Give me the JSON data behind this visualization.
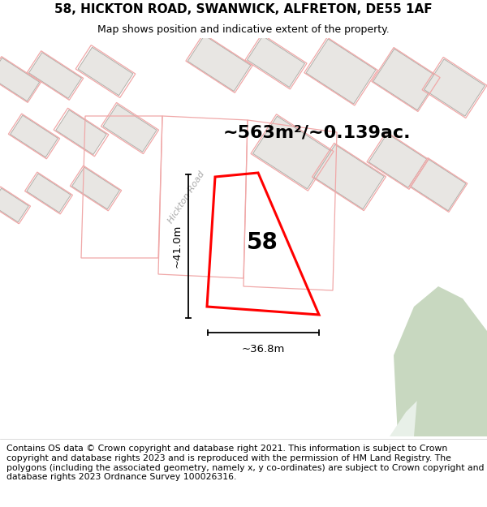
{
  "title_line1": "58, HICKTON ROAD, SWANWICK, ALFRETON, DE55 1AF",
  "title_line2": "Map shows position and indicative extent of the property.",
  "footer_text": "Contains OS data © Crown copyright and database right 2021. This information is subject to Crown copyright and database rights 2023 and is reproduced with the permission of HM Land Registry. The polygons (including the associated geometry, namely x, y co-ordinates) are subject to Crown copyright and database rights 2023 Ordnance Survey 100026316.",
  "area_label": "~563m²/~0.139ac.",
  "number_label": "58",
  "dim_height": "~41.0m",
  "dim_width": "~36.8m",
  "road_label": "Hickton Road",
  "bg_color": "#f5f3f0",
  "road_color": "#ffffff",
  "building_fill": "#e8e6e3",
  "building_edge": "#b0aea8",
  "prop_edge": "#f0a8a8",
  "green_color": "#c8d8c0",
  "plot_color": "#ff0000",
  "title_fs": 11,
  "footer_fs": 7.8
}
